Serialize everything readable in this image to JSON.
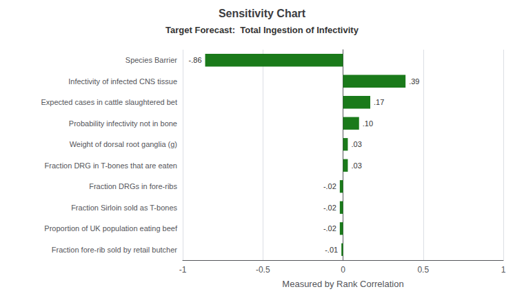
{
  "chart_data": {
    "type": "bar",
    "orientation": "horizontal",
    "title": "Sensitivity Chart",
    "subtitle": "Target Forecast:  Total Ingestion of Infectivity",
    "xlabel": "Measured by Rank Correlation",
    "categories": [
      "Species Barrier",
      "Infectivity of infected CNS tissue",
      "Expected cases in cattle slaughtered bet",
      "Probability infectivity not in bone",
      "Weight of dorsal root ganglia (g)",
      "Fraction DRG in T-bones that are eaten",
      "Fraction DRGs in fore-ribs",
      "Fraction Sirloin sold as T-bones",
      "Proportion of UK population eating beef",
      "Fraction fore-rib sold by retail butcher"
    ],
    "values": [
      -0.86,
      0.39,
      0.17,
      0.1,
      0.03,
      0.03,
      -0.02,
      -0.02,
      -0.02,
      -0.01
    ],
    "value_labels": [
      "-.86",
      ".39",
      ".17",
      ".10",
      ".03",
      ".03",
      "-.02",
      "-.02",
      "-.02",
      "-.01"
    ],
    "data_labels": true,
    "color": "#1a7a1a",
    "xlim": [
      -1,
      1
    ],
    "xticks": [
      -1,
      -0.5,
      0,
      0.5,
      1
    ],
    "grid": true
  }
}
